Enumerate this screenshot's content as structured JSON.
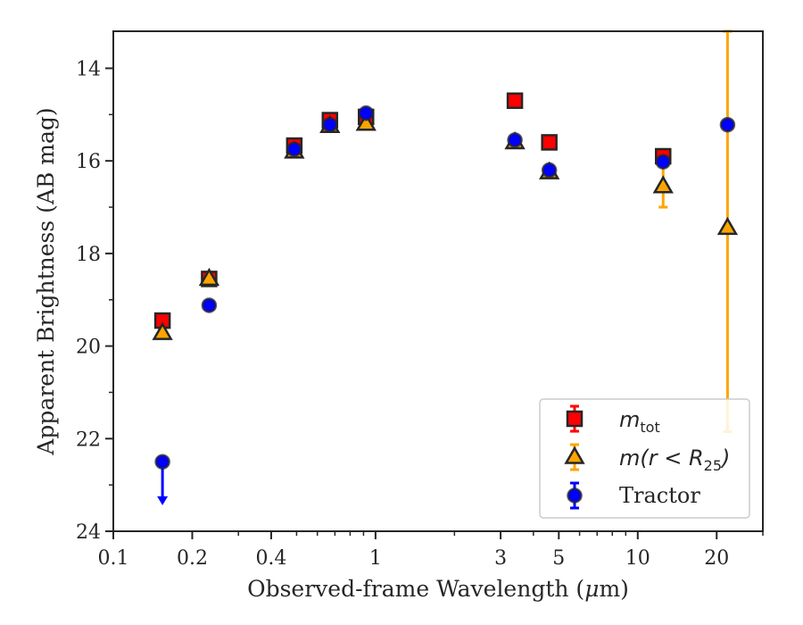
{
  "chart_data": {
    "type": "scatter",
    "xscale": "log",
    "xlim": [
      0.1,
      30
    ],
    "ylim": [
      24,
      13.2
    ],
    "y_inverted": true,
    "grid": false,
    "legend_position": "lower-right",
    "xlabel_parts": [
      "Observed-frame Wavelength (",
      "μ",
      "m)"
    ],
    "ylabel": "Apparent Brightness (AB mag)",
    "x_ticks": [
      0.1,
      0.2,
      0.4,
      1,
      3,
      5,
      10,
      20
    ],
    "x_tick_labels": [
      "0.1",
      "0.2",
      "0.4",
      "1",
      "3",
      "5",
      "10",
      "20"
    ],
    "y_ticks": [
      14,
      16,
      18,
      20,
      22,
      24
    ],
    "y_tick_labels": [
      "14",
      "16",
      "18",
      "20",
      "22",
      "24"
    ],
    "series": [
      {
        "name": "m_tot",
        "legend_label_parts": [
          "m",
          "tot"
        ],
        "marker": "square",
        "color": "#ff0000",
        "errcolor": "#ff0000",
        "points": [
          {
            "x": 0.154,
            "y": 19.45,
            "err": 0.1
          },
          {
            "x": 0.232,
            "y": 18.55,
            "err": 0.1
          },
          {
            "x": 0.49,
            "y": 15.67,
            "err": 0.05
          },
          {
            "x": 0.67,
            "y": 15.12,
            "err": 0.05
          },
          {
            "x": 0.92,
            "y": 15.05,
            "err": 0.05
          },
          {
            "x": 3.4,
            "y": 14.7,
            "err": 0.05
          },
          {
            "x": 4.6,
            "y": 15.6,
            "err": 0.05
          },
          {
            "x": 12.5,
            "y": 15.9,
            "err": 0.08
          }
        ]
      },
      {
        "name": "m(r < R25)",
        "legend_label_parts": [
          "m(r < R",
          "25",
          ")"
        ],
        "marker": "triangle",
        "color": "#ffa500",
        "errcolor": "#ffa500",
        "points": [
          {
            "x": 0.154,
            "y": 19.72,
            "err": 0.08
          },
          {
            "x": 0.232,
            "y": 18.55,
            "err": 0.08
          },
          {
            "x": 0.49,
            "y": 15.8,
            "err": 0.05
          },
          {
            "x": 0.67,
            "y": 15.25,
            "err": 0.05
          },
          {
            "x": 0.92,
            "y": 15.2,
            "err": 0.05
          },
          {
            "x": 3.4,
            "y": 15.6,
            "err": 0.05
          },
          {
            "x": 4.6,
            "y": 16.25,
            "err": 0.05
          },
          {
            "x": 12.5,
            "y": 16.55,
            "err": 0.45
          },
          {
            "x": 22.0,
            "y": 17.45,
            "err": 4.4
          }
        ]
      },
      {
        "name": "Tractor",
        "legend_label_parts": [
          "Tractor"
        ],
        "marker": "circle",
        "color": "#0000ff",
        "errcolor": "#0000ff",
        "points": [
          {
            "x": 0.154,
            "y": 22.5,
            "upper_limit_arrow": true
          },
          {
            "x": 0.232,
            "y": 19.12,
            "err": 0.08
          },
          {
            "x": 0.49,
            "y": 15.75,
            "err": 0.05
          },
          {
            "x": 0.67,
            "y": 15.22,
            "err": 0.05
          },
          {
            "x": 0.92,
            "y": 14.97,
            "err": 0.05
          },
          {
            "x": 3.4,
            "y": 15.55,
            "err": 0.05
          },
          {
            "x": 4.6,
            "y": 16.2,
            "err": 0.05
          },
          {
            "x": 12.5,
            "y": 16.02,
            "err": 0.08
          },
          {
            "x": 22.0,
            "y": 15.22,
            "err": 0.08
          }
        ]
      }
    ]
  }
}
